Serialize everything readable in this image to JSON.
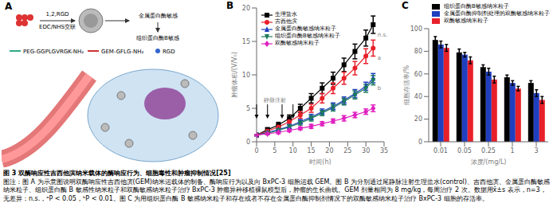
{
  "figure": {
    "caption_title": "图 3  双酶响应性吉西他滨纳米载体的酶响应行为、细胞毒性和肿瘤抑制情况[25]",
    "caption_note": "图注：图 A 为示意图说明双酶响应性吉西他滨(GEM)纳米运载体的制备、酶响应行为以及向 BxPC-3 细胞运载 GEM。图 B 为分别通过尾静脉注射生理盐水(control)、吉西他滨、金属蛋白酶敏感纳米粒子、组织蛋白酶 B 敏感性纳米粒子和双酶敏感纳米粒子治疗 BxPC-3 肿瘤异种移植裸鼠模型后，肿瘤的生长曲线。GEM 剂量相同为 8 mg/kg，每周治疗 2 次。数据用x̄±s 表示，n=3，无差异：n.s.，ᵃP < 0.05，ᵇP < 0.01。图 C 为用组织蛋白酶 B 敏感纳米粒子和存在或者不存在金属蛋白酶抑制剂情况下的双酶敏感纳米粒子治疗 BxPC-3 细胞的存活率。"
  },
  "diagram": {
    "panel": "A",
    "reagent": "1,2,RGD",
    "crosslink": "EDC/NHS交联",
    "step1": "金属蛋白酶敏感",
    "step2": "组织蛋白酶B敏感",
    "peg": "PEG-GGPLGVRGK-NH₂",
    "gem": "GEM-GFLG-NH₂",
    "rgd": "RGD"
  },
  "chart_data": [
    {
      "type": "line",
      "title": "B",
      "x_label": "时间(h)",
      "y_label": "肿瘤体积/(V/V₀)",
      "x": [
        0,
        3,
        6,
        9,
        12,
        15,
        18,
        21,
        24,
        27,
        30,
        32
      ],
      "xlim": [
        0,
        35
      ],
      "xticks": [
        0,
        5,
        10,
        15,
        20,
        25,
        30,
        35
      ],
      "ylim": [
        0,
        20
      ],
      "yticks": [
        0,
        5,
        10,
        15,
        20
      ],
      "legend": "upper left",
      "series": [
        {
          "name": "生理盐水",
          "color": "#000000",
          "marker": "square",
          "values": [
            1,
            1.8,
            2.5,
            3.5,
            5,
            6.5,
            8,
            9.5,
            11.5,
            13.5,
            15.5,
            17.5
          ],
          "errors": [
            0.1,
            0.3,
            0.4,
            0.5,
            0.6,
            0.7,
            0.8,
            0.9,
            1.0,
            1.1,
            1.2,
            1.3
          ]
        },
        {
          "name": "吉西他滨",
          "color": "#e8202a",
          "marker": "circle",
          "values": [
            1,
            1.6,
            2.2,
            3,
            4,
            5,
            6.5,
            8,
            9.5,
            11,
            12.8,
            14
          ],
          "errors": [
            0.1,
            0.2,
            0.3,
            0.4,
            0.5,
            0.6,
            0.7,
            0.8,
            0.9,
            1.0,
            1.1,
            1.2
          ]
        },
        {
          "name": "金属蛋白酶敏感纳米粒子",
          "color": "#1f3fbf",
          "marker": "triangle",
          "values": [
            1,
            1.4,
            1.8,
            2.3,
            3,
            3.7,
            4.5,
            5.3,
            6.2,
            7.2,
            8.3,
            9.5
          ],
          "errors": [
            0.1,
            0.2,
            0.2,
            0.3,
            0.3,
            0.4,
            0.4,
            0.5,
            0.5,
            0.6,
            0.6,
            0.7
          ]
        },
        {
          "name": "组织蛋白酶B敏感纳米粒子",
          "color": "#1a7a5a",
          "marker": "triangle-down",
          "values": [
            1,
            1.3,
            1.7,
            2.2,
            2.8,
            3.5,
            4.3,
            5.1,
            6,
            7,
            8,
            9.2
          ],
          "errors": [
            0.1,
            0.2,
            0.2,
            0.3,
            0.3,
            0.4,
            0.4,
            0.5,
            0.5,
            0.6,
            0.6,
            0.7
          ]
        },
        {
          "name": "双酶敏感纳米粒子",
          "color": "#e020c0",
          "marker": "diamond",
          "values": [
            1,
            1.2,
            1.4,
            1.7,
            2,
            2.3,
            2.7,
            3.1,
            3.5,
            4,
            4.5,
            5
          ],
          "errors": [
            0.1,
            0.1,
            0.2,
            0.2,
            0.2,
            0.3,
            0.3,
            0.3,
            0.4,
            0.4,
            0.4,
            0.5
          ]
        }
      ],
      "annotations": [
        {
          "text": "n.s.",
          "x": 33,
          "y": 16
        },
        {
          "text": "a",
          "x": 33,
          "y": 12.5
        },
        {
          "text": "b",
          "x": 33,
          "y": 8
        }
      ],
      "injection": {
        "text": "静脉注射",
        "x": [
          0,
          3,
          7,
          10
        ]
      }
    },
    {
      "type": "bar",
      "title": "C",
      "x_label": "浓度/(mg/L)",
      "y_label": "细胞存活率/%",
      "categories": [
        "0.01",
        "0.05",
        "0.25",
        "1",
        "3"
      ],
      "ylim": [
        0,
        100
      ],
      "yticks": [
        0,
        20,
        40,
        60,
        80,
        100
      ],
      "legend": "upper right",
      "series": [
        {
          "name": "组织蛋白酶B敏感纳米粒子",
          "color": "#000000",
          "values": [
            90,
            79,
            66,
            57,
            52
          ],
          "errors": [
            3,
            3,
            2,
            2,
            2
          ]
        },
        {
          "name": "金属蛋白酶抑制剂处理的双酶敏感纳米粒子",
          "color": "#1f3fbf",
          "values": [
            86,
            77,
            62,
            52,
            43
          ],
          "errors": [
            3,
            2,
            3,
            2,
            3
          ]
        },
        {
          "name": "双酶敏感纳米粒子",
          "color": "#e8202a",
          "values": [
            83,
            72,
            55,
            47,
            37
          ],
          "errors": [
            3,
            3,
            3,
            2,
            3
          ]
        }
      ]
    }
  ]
}
